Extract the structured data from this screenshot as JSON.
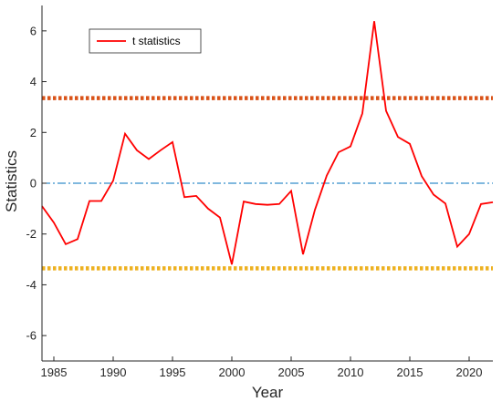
{
  "chart_data": {
    "type": "line",
    "title": "",
    "xlabel": "Year",
    "ylabel": "Statistics",
    "xlim": [
      1984,
      2022
    ],
    "ylim": [
      -7,
      7
    ],
    "x_ticks": [
      1985,
      1990,
      1995,
      2000,
      2005,
      2010,
      2015,
      2020
    ],
    "y_ticks": [
      -6,
      -4,
      -2,
      0,
      2,
      4,
      6
    ],
    "grid": false,
    "legend": {
      "placement": "top-left",
      "entries": [
        "t statistics"
      ]
    },
    "series": [
      {
        "name": "t statistics",
        "color": "#ff0000",
        "x": [
          1984,
          1985,
          1986,
          1987,
          1988,
          1989,
          1990,
          1991,
          1992,
          1993,
          1994,
          1995,
          1996,
          1997,
          1998,
          1999,
          2000,
          2001,
          2002,
          2003,
          2004,
          2005,
          2006,
          2007,
          2008,
          2009,
          2010,
          2011,
          2012,
          2013,
          2014,
          2015,
          2016,
          2017,
          2018,
          2019,
          2020,
          2021,
          2022
        ],
        "y": [
          -0.9,
          -1.55,
          -2.4,
          -2.2,
          -0.7,
          -0.7,
          0.1,
          1.95,
          1.3,
          0.95,
          1.3,
          1.62,
          -0.55,
          -0.5,
          -1.0,
          -1.35,
          -3.2,
          -0.72,
          -0.82,
          -0.85,
          -0.82,
          -0.3,
          -2.8,
          -1.05,
          0.3,
          1.22,
          1.45,
          2.75,
          6.38,
          2.85,
          1.82,
          1.55,
          0.28,
          -0.45,
          -0.8,
          -2.5,
          -2.0,
          -0.82,
          -0.75
        ]
      }
    ],
    "reference_lines": [
      {
        "y": 3.35,
        "color": "#d95319",
        "style": "dotted"
      },
      {
        "y": 0,
        "color": "#0072bd",
        "style": "dashdot"
      },
      {
        "y": -3.35,
        "color": "#edb120",
        "style": "dotted"
      }
    ]
  }
}
